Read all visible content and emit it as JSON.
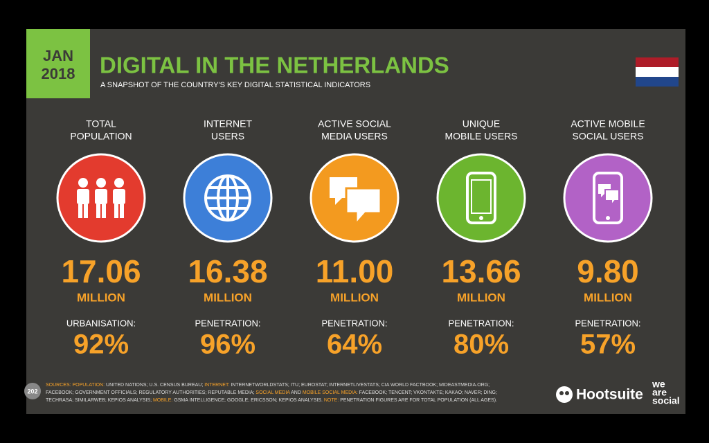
{
  "header": {
    "badge_month": "JAN",
    "badge_year": "2018",
    "title": "DIGITAL IN THE NETHERLANDS",
    "subtitle": "A SNAPSHOT OF THE COUNTRY'S KEY DIGITAL STATISTICAL INDICATORS"
  },
  "stats": [
    {
      "label": [
        "TOTAL",
        "POPULATION"
      ],
      "value": "17.06",
      "unit": "MILLION",
      "sub_label": "URBANISATION:",
      "sub_value": "92%",
      "color": "#e33b2e"
    },
    {
      "label": [
        "INTERNET",
        "USERS"
      ],
      "value": "16.38",
      "unit": "MILLION",
      "sub_label": "PENETRATION:",
      "sub_value": "96%",
      "color": "#3d7fd8"
    },
    {
      "label": [
        "ACTIVE SOCIAL",
        "MEDIA USERS"
      ],
      "value": "11.00",
      "unit": "MILLION",
      "sub_label": "PENETRATION:",
      "sub_value": "64%",
      "color": "#f39a1f"
    },
    {
      "label": [
        "UNIQUE",
        "MOBILE USERS"
      ],
      "value": "13.66",
      "unit": "MILLION",
      "sub_label": "PENETRATION:",
      "sub_value": "80%",
      "color": "#6cb52f"
    },
    {
      "label": [
        "ACTIVE MOBILE",
        "SOCIAL USERS"
      ],
      "value": "9.80",
      "unit": "MILLION",
      "sub_label": "PENETRATION:",
      "sub_value": "57%",
      "color": "#b262c6"
    }
  ],
  "footer": {
    "page_number": "202",
    "sources": [
      [
        {
          "accent": "SOURCES: POPULATION:"
        },
        {
          "plain": " UNITED NATIONS; U.S. CENSUS BUREAU; "
        },
        {
          "accent": "INTERNET:"
        },
        {
          "plain": " INTERNETWORLDSTATS; ITU; EUROSTAT; INTERNETLIVESTATS; CIA WORLD FACTBOOK; MIDEASTMEDIA.ORG;"
        }
      ],
      [
        {
          "plain": "FACEBOOK; GOVERNMENT OFFICIALS; REGULATORY AUTHORITIES; REPUTABLE MEDIA; "
        },
        {
          "accent": "SOCIAL MEDIA"
        },
        {
          "plain": " AND "
        },
        {
          "accent": "MOBILE SOCIAL MEDIA:"
        },
        {
          "plain": " FACEBOOK; TENCENT; VKONTAKTE; KAKAO; NAVER; DING;"
        }
      ],
      [
        {
          "plain": "TECHRASA; SIMILARWEB; KEPIOS ANALYSIS; "
        },
        {
          "accent": "MOBILE:"
        },
        {
          "plain": " GSMA INTELLIGENCE; GOOGLE; ERICSSON; KEPIOS ANALYSIS. "
        },
        {
          "accent": "NOTE:"
        },
        {
          "plain": " PENETRATION FIGURES ARE FOR TOTAL POPULATION (ALL AGES)."
        }
      ]
    ],
    "logo_hootsuite": "Hootsuite",
    "logo_wearesocial": [
      "we",
      "are",
      "social"
    ]
  }
}
